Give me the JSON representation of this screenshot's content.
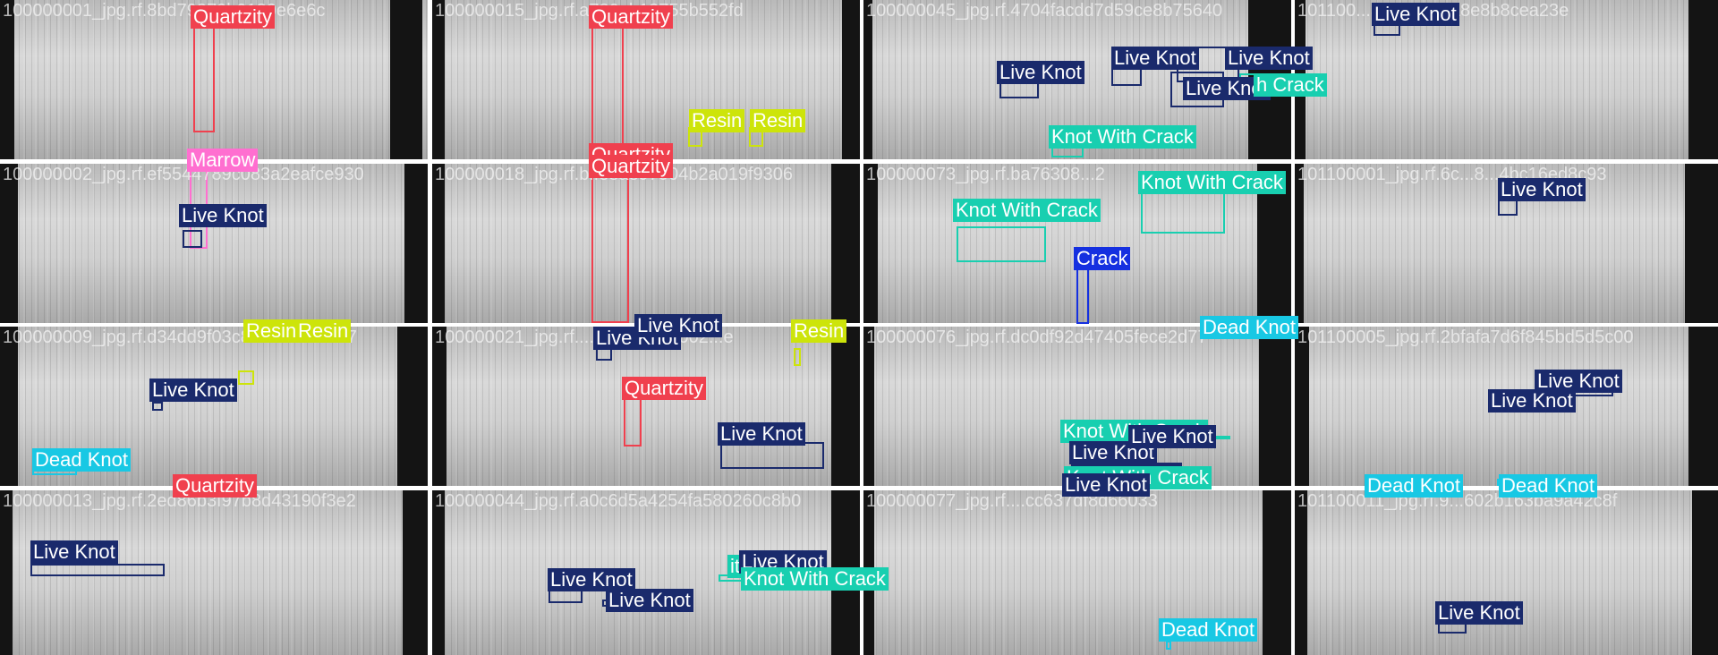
{
  "classes": {
    "quartzity": {
      "name": "Quartzity",
      "color": "#f0404e"
    },
    "live_knot": {
      "name": "Live Knot",
      "color": "#1a2a6c"
    },
    "resin": {
      "name": "Resin",
      "color": "#cde40a"
    },
    "marrow": {
      "name": "Marrow",
      "color": "#ff6fd0"
    },
    "knot_with_crack": {
      "name": "Knot With Crack",
      "color": "#18cfb0"
    },
    "crack": {
      "name": "Crack",
      "color": "#1530e0"
    },
    "dead_knot": {
      "name": "Dead Knot",
      "color": "#18c8e4"
    }
  },
  "tiles": [
    {
      "name": "100000001_jpg.rf.8bd79279b0180e6e6c"
    },
    {
      "name": "100000015_jpg.rf.a780ab13755b552fd"
    },
    {
      "name": "100000045_jpg.rf.4704facdd7d59ce8b75640"
    },
    {
      "name": "101100...321ed275a8e8b8cea23e"
    },
    {
      "name": "100000002_jpg.rf.ef5544789c083a2eafce930"
    },
    {
      "name": "100000018_jpg.rf.bffe8ae97904b2a019f9306"
    },
    {
      "name": "100000073_jpg.rf.ba76308...2"
    },
    {
      "name": "101100001_jpg.rf.6c...8...4bc16ed8c93"
    },
    {
      "name": "100000009_jpg.rf.d34dd9f03c8cae94c55ca7"
    },
    {
      "name": "100000021_jpg.rf....abe52b...4002...e"
    },
    {
      "name": "100000076_jpg.rf.dc0df92d47405fece2d77"
    },
    {
      "name": "101100005_jpg.rf.2bfafa7d6f845bd5d5c00"
    },
    {
      "name": "100000013_jpg.rf.2ed86b3f97b8d43190f3e2"
    },
    {
      "name": "100000044_jpg.rf.a0c6d5a4254fa580260c8b0"
    },
    {
      "name": "100000077_jpg.rf....cc637df8d66033"
    },
    {
      "name": "101100011_jpg.rf.9...602b163ba9a42c8f"
    }
  ],
  "detections": [
    {
      "tile": 0,
      "cls": "quartzity",
      "label": "Quartzity"
    },
    {
      "tile": 0,
      "cls": "marrow",
      "label": "Marrow"
    },
    {
      "tile": 1,
      "cls": "quartzity",
      "label": "Quartzity"
    },
    {
      "tile": 1,
      "cls": "resin",
      "label": "Resin"
    },
    {
      "tile": 1,
      "cls": "resin",
      "label": "Resin"
    },
    {
      "tile": 1,
      "cls": "quartzity",
      "label": "Quartzity"
    },
    {
      "tile": 2,
      "cls": "live_knot",
      "label": "Live Knot"
    },
    {
      "tile": 2,
      "cls": "live_knot",
      "label": "Live Knot"
    },
    {
      "tile": 2,
      "cls": "live_knot",
      "label": "Live Knot"
    },
    {
      "tile": 2,
      "cls": "live_knot",
      "label": "Live Knot"
    },
    {
      "tile": 2,
      "cls": "knot_with_crack",
      "label": "h Crack"
    },
    {
      "tile": 2,
      "cls": "knot_with_crack",
      "label": "Knot With Crack"
    },
    {
      "tile": 3,
      "cls": "live_knot",
      "label": "Live Knot"
    },
    {
      "tile": 4,
      "cls": "live_knot",
      "label": "Live Knot"
    },
    {
      "tile": 5,
      "cls": "quartzity",
      "label": "Quartzity"
    },
    {
      "tile": 6,
      "cls": "knot_with_crack",
      "label": "Knot With Crack"
    },
    {
      "tile": 6,
      "cls": "knot_with_crack",
      "label": "Knot With Crack"
    },
    {
      "tile": 6,
      "cls": "crack",
      "label": "Crack"
    },
    {
      "tile": 6,
      "cls": "dead_knot",
      "label": "Dead Knot"
    },
    {
      "tile": 7,
      "cls": "live_knot",
      "label": "Live Knot"
    },
    {
      "tile": 8,
      "cls": "resin",
      "label": "Resin"
    },
    {
      "tile": 8,
      "cls": "resin",
      "label": "Resin"
    },
    {
      "tile": 8,
      "cls": "live_knot",
      "label": "Live Knot"
    },
    {
      "tile": 8,
      "cls": "dead_knot",
      "label": "Dead Knot"
    },
    {
      "tile": 8,
      "cls": "quartzity",
      "label": "Quartzity"
    },
    {
      "tile": 9,
      "cls": "live_knot",
      "label": "Live Knot"
    },
    {
      "tile": 9,
      "cls": "live_knot",
      "label": "Live Knot"
    },
    {
      "tile": 9,
      "cls": "resin",
      "label": "Resin"
    },
    {
      "tile": 9,
      "cls": "quartzity",
      "label": "Quartzity"
    },
    {
      "tile": 9,
      "cls": "live_knot",
      "label": "Live Knot"
    },
    {
      "tile": 10,
      "cls": "knot_with_crack",
      "label": "Knot With Crack"
    },
    {
      "tile": 10,
      "cls": "live_knot",
      "label": "Live Knot"
    },
    {
      "tile": 10,
      "cls": "live_knot",
      "label": "Live Knot"
    },
    {
      "tile": 10,
      "cls": "knot_with_crack",
      "label": "Knot With Crack"
    },
    {
      "tile": 10,
      "cls": "live_knot",
      "label": "Live Knot"
    },
    {
      "tile": 11,
      "cls": "live_knot",
      "label": "Live Knot"
    },
    {
      "tile": 11,
      "cls": "live_knot",
      "label": "Live Knot"
    },
    {
      "tile": 11,
      "cls": "dead_knot",
      "label": "Dead Knot"
    },
    {
      "tile": 11,
      "cls": "dead_knot",
      "label": "Dead Knot"
    },
    {
      "tile": 12,
      "cls": "live_knot",
      "label": "Live Knot"
    },
    {
      "tile": 13,
      "cls": "live_knot",
      "label": "Live Knot"
    },
    {
      "tile": 13,
      "cls": "live_knot",
      "label": "Live Knot"
    },
    {
      "tile": 13,
      "cls": "knot_with_crack",
      "label": "ith Crack"
    },
    {
      "tile": 13,
      "cls": "live_knot",
      "label": "Live Knot"
    },
    {
      "tile": 13,
      "cls": "knot_with_crack",
      "label": "Knot With Crack"
    },
    {
      "tile": 14,
      "cls": "dead_knot",
      "label": "Dead Knot"
    },
    {
      "tile": 15,
      "cls": "live_knot",
      "label": "Live Knot"
    }
  ]
}
